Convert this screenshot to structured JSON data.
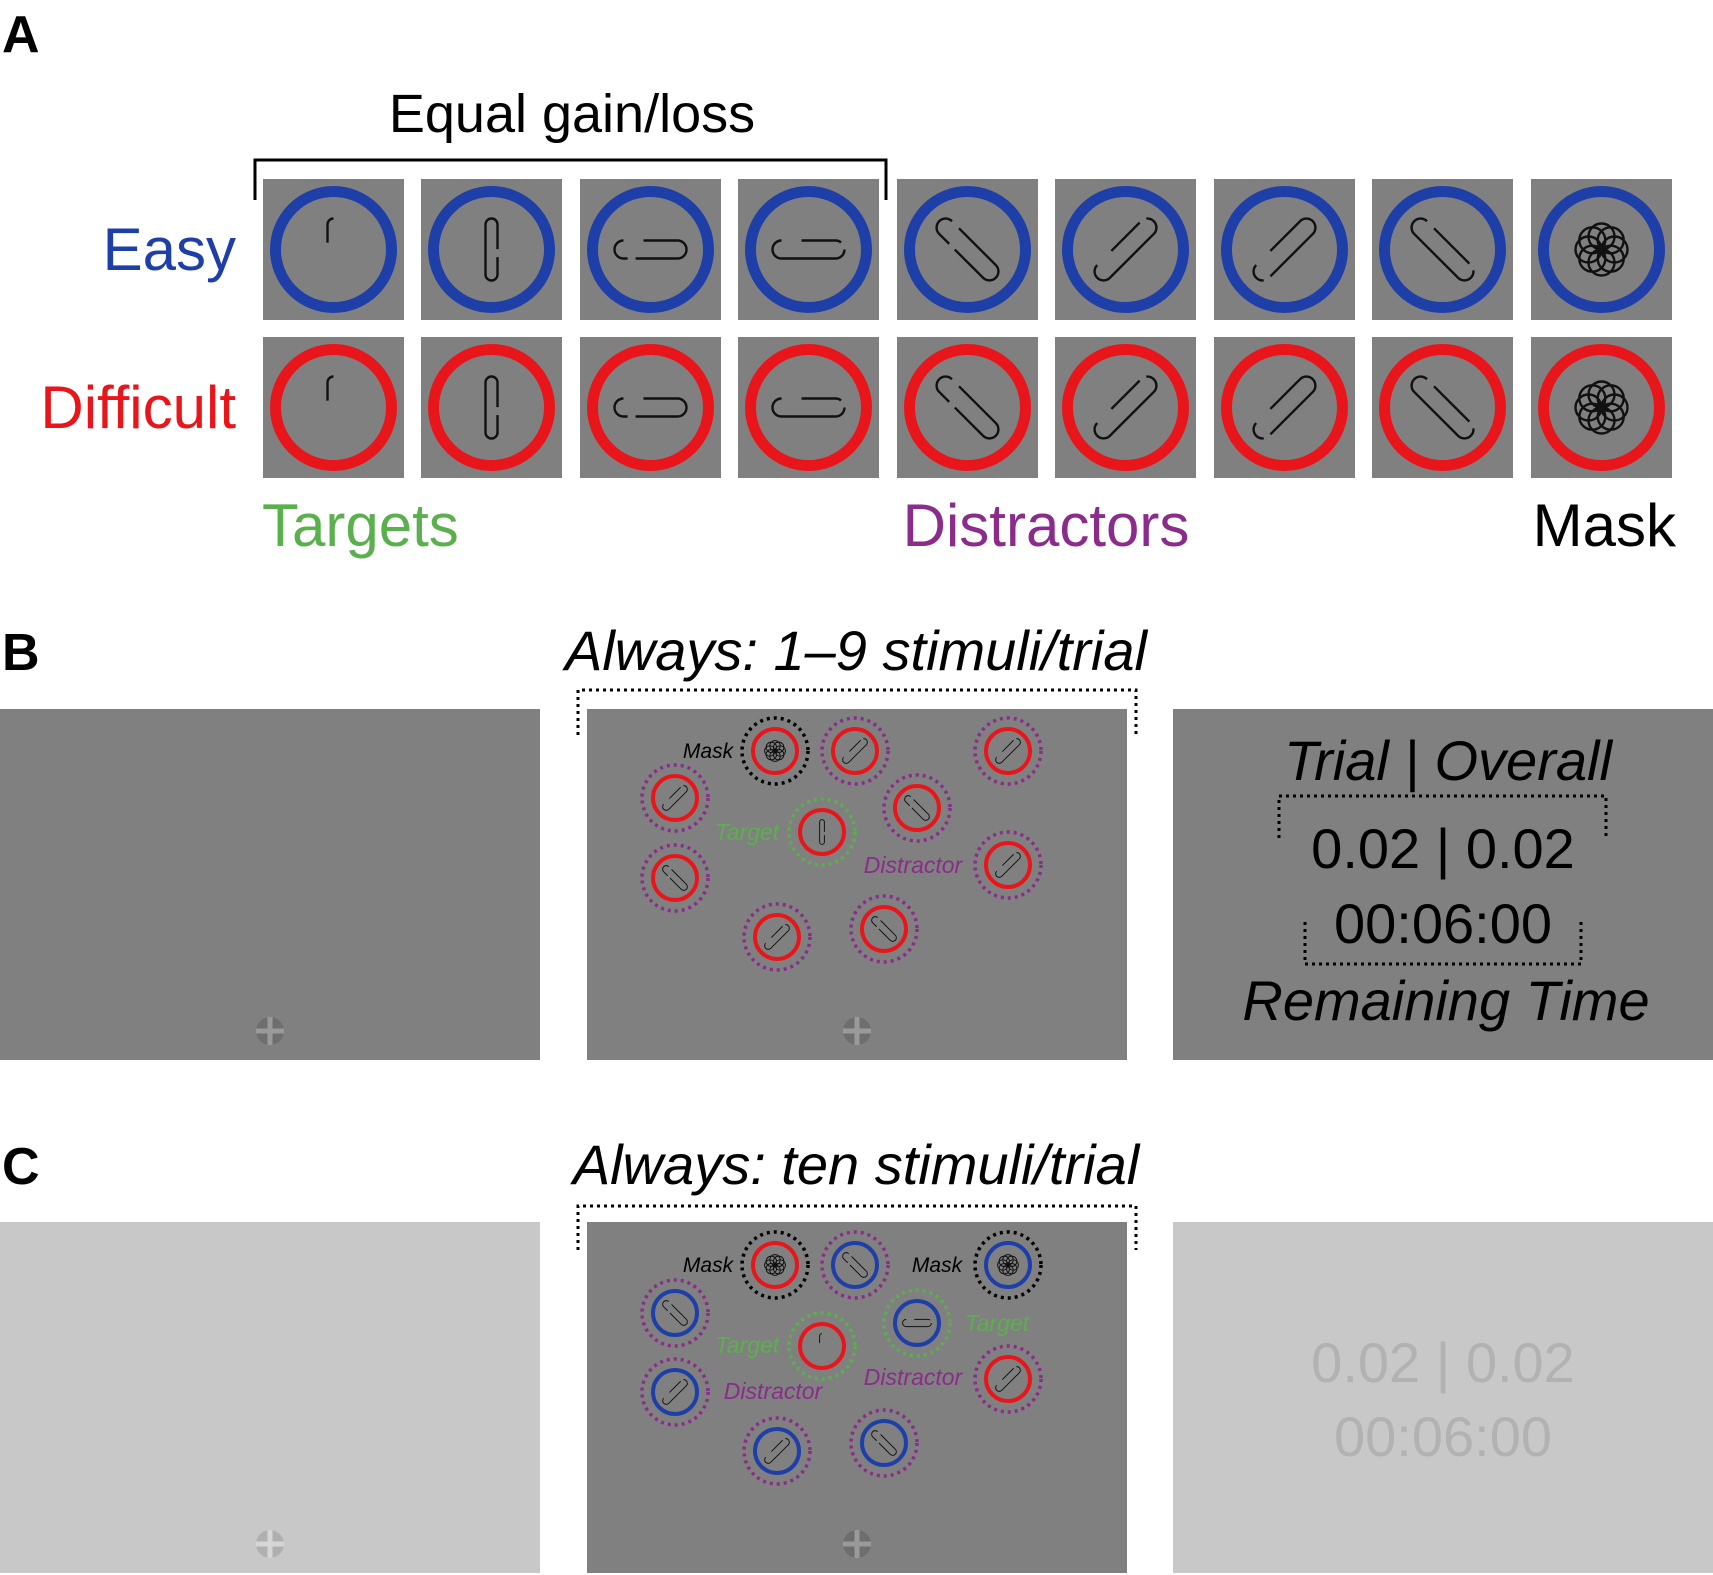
{
  "panel_a": {
    "letter": "A",
    "bracket_label": "Equal gain/loss",
    "row_labels": {
      "easy": "Easy",
      "difficult": "Difficult"
    },
    "group_labels": {
      "targets": "Targets",
      "distractors": "Distractors",
      "mask": "Mask"
    },
    "stimuli": [
      "vertical-gap-left",
      "vertical-gap-right",
      "horizontal-gap-bottom",
      "horizontal-gap-top",
      "diagonal-nw-se-gap-a",
      "diagonal-ne-sw-gap-a",
      "diagonal-ne-sw-gap-b",
      "diagonal-nw-se-gap-b",
      "mask-rosette"
    ]
  },
  "panel_b": {
    "letter": "B",
    "title": "Always: 1–9 stimuli/trial",
    "labels": {
      "mask": "Mask",
      "target": "Target",
      "distractor": "Distractor"
    },
    "score": {
      "header": "Trial | Overall",
      "value": "0.02 | 0.02",
      "time": "00:06:00",
      "footer": "Remaining Time"
    }
  },
  "panel_c": {
    "letter": "C",
    "title": "Always: ten stimuli/trial",
    "labels": {
      "mask": "Mask",
      "target": "Target",
      "distractor": "Distractor"
    },
    "score": {
      "value": "0.02 | 0.02",
      "time": "00:06:00"
    }
  },
  "colors": {
    "easy": "#1f3fa8",
    "difficult": "#e8161b",
    "targets": "#5bb04e",
    "distractors": "#8b2b8b",
    "mask": "#000000",
    "stim_bg": "#808080",
    "faded_bg": "#c8c8c8",
    "faded_text": "#b2b2b2"
  }
}
